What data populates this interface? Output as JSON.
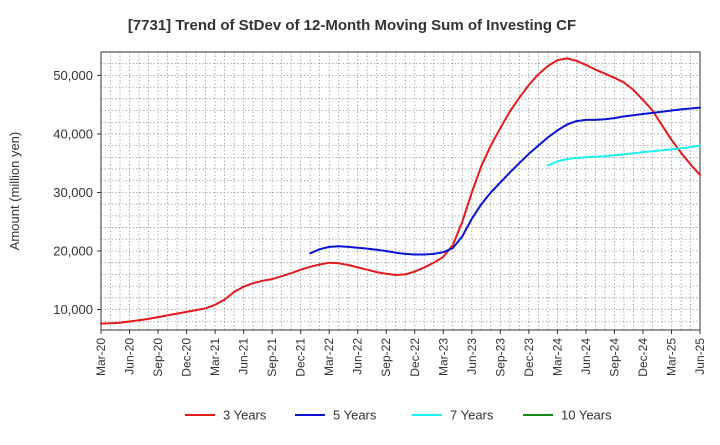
{
  "chart_data": {
    "type": "line",
    "title": "[7731]  Trend of StDev of 12-Month Moving Sum of Investing CF",
    "xlabel": "",
    "ylabel": "Amount (million yen)",
    "x_tick_labels": [
      "Mar-20",
      "Jun-20",
      "Sep-20",
      "Dec-20",
      "Mar-21",
      "Jun-21",
      "Sep-21",
      "Dec-21",
      "Mar-22",
      "Jun-22",
      "Sep-22",
      "Dec-22",
      "Mar-23",
      "Jun-23",
      "Sep-23",
      "Dec-23",
      "Mar-24",
      "Jun-24",
      "Sep-24",
      "Dec-24",
      "Mar-25",
      "Jun-25"
    ],
    "y_ticks": [
      10000,
      20000,
      30000,
      40000,
      50000
    ],
    "y_tick_labels": [
      "10,000",
      "20,000",
      "30,000",
      "40,000",
      "50,000"
    ],
    "ylim": [
      6500,
      54000
    ],
    "grid": true,
    "legend_position": "bottom",
    "series": [
      {
        "name": "3 Years",
        "color": "#e41a1c",
        "points": [
          [
            "Mar-20",
            7600
          ],
          [
            "Apr-20",
            7650
          ],
          [
            "May-20",
            7750
          ],
          [
            "Jun-20",
            7950
          ],
          [
            "Jul-20",
            8150
          ],
          [
            "Aug-20",
            8400
          ],
          [
            "Sep-20",
            8700
          ],
          [
            "Oct-20",
            9000
          ],
          [
            "Nov-20",
            9300
          ],
          [
            "Dec-20",
            9600
          ],
          [
            "Jan-21",
            9900
          ],
          [
            "Feb-21",
            10200
          ],
          [
            "Mar-21",
            10800
          ],
          [
            "Apr-21",
            11700
          ],
          [
            "May-21",
            13000
          ],
          [
            "Jun-21",
            13900
          ],
          [
            "Jul-21",
            14500
          ],
          [
            "Aug-21",
            14900
          ],
          [
            "Sep-21",
            15200
          ],
          [
            "Oct-21",
            15700
          ],
          [
            "Nov-21",
            16200
          ],
          [
            "Dec-21",
            16800
          ],
          [
            "Jan-22",
            17300
          ],
          [
            "Feb-22",
            17700
          ],
          [
            "Mar-22",
            18000
          ],
          [
            "Apr-22",
            17900
          ],
          [
            "May-22",
            17600
          ],
          [
            "Jun-22",
            17200
          ],
          [
            "Jul-22",
            16800
          ],
          [
            "Aug-22",
            16400
          ],
          [
            "Sep-22",
            16100
          ],
          [
            "Oct-22",
            15900
          ],
          [
            "Nov-22",
            16000
          ],
          [
            "Dec-22",
            16500
          ],
          [
            "Jan-23",
            17200
          ],
          [
            "Feb-23",
            18000
          ],
          [
            "Mar-23",
            19000
          ],
          [
            "Apr-23",
            21000
          ],
          [
            "May-23",
            25000
          ],
          [
            "Jun-23",
            30000
          ],
          [
            "Jul-23",
            34500
          ],
          [
            "Aug-23",
            38000
          ],
          [
            "Sep-23",
            41000
          ],
          [
            "Oct-23",
            43800
          ],
          [
            "Nov-23",
            46200
          ],
          [
            "Dec-23",
            48400
          ],
          [
            "Jan-24",
            50200
          ],
          [
            "Feb-24",
            51600
          ],
          [
            "Mar-24",
            52600
          ],
          [
            "Apr-24",
            52900
          ],
          [
            "May-24",
            52500
          ],
          [
            "Jun-24",
            51800
          ],
          [
            "Jul-24",
            51000
          ],
          [
            "Aug-24",
            50300
          ],
          [
            "Sep-24",
            49600
          ],
          [
            "Oct-24",
            48800
          ],
          [
            "Nov-24",
            47500
          ],
          [
            "Dec-24",
            45800
          ],
          [
            "Jan-25",
            44000
          ],
          [
            "Feb-25",
            41500
          ],
          [
            "Mar-25",
            39000
          ],
          [
            "Apr-25",
            36800
          ],
          [
            "May-25",
            34800
          ],
          [
            "Jun-25",
            33000
          ]
        ]
      },
      {
        "name": "5 Years",
        "color": "#0a14d0",
        "points": [
          [
            "Jan-22",
            19600
          ],
          [
            "Feb-22",
            20300
          ],
          [
            "Mar-22",
            20700
          ],
          [
            "Apr-22",
            20800
          ],
          [
            "May-22",
            20700
          ],
          [
            "Jun-22",
            20550
          ],
          [
            "Jul-22",
            20400
          ],
          [
            "Aug-22",
            20200
          ],
          [
            "Sep-22",
            20000
          ],
          [
            "Oct-22",
            19700
          ],
          [
            "Nov-22",
            19500
          ],
          [
            "Dec-22",
            19400
          ],
          [
            "Jan-23",
            19400
          ],
          [
            "Feb-23",
            19500
          ],
          [
            "Mar-23",
            19800
          ],
          [
            "Apr-23",
            20500
          ],
          [
            "May-23",
            22500
          ],
          [
            "Jun-23",
            25500
          ],
          [
            "Jul-23",
            28000
          ],
          [
            "Aug-23",
            30000
          ],
          [
            "Sep-23",
            31700
          ],
          [
            "Oct-23",
            33400
          ],
          [
            "Nov-23",
            35000
          ],
          [
            "Dec-23",
            36600
          ],
          [
            "Jan-24",
            38000
          ],
          [
            "Feb-24",
            39400
          ],
          [
            "Mar-24",
            40600
          ],
          [
            "Apr-24",
            41600
          ],
          [
            "May-24",
            42200
          ],
          [
            "Jun-24",
            42400
          ],
          [
            "Jul-24",
            42400
          ],
          [
            "Aug-24",
            42500
          ],
          [
            "Sep-24",
            42700
          ],
          [
            "Oct-24",
            43000
          ],
          [
            "Nov-24",
            43200
          ],
          [
            "Dec-24",
            43400
          ],
          [
            "Jan-25",
            43600
          ],
          [
            "Feb-25",
            43800
          ],
          [
            "Mar-25",
            44000
          ],
          [
            "Apr-25",
            44200
          ],
          [
            "May-25",
            44350
          ],
          [
            "Jun-25",
            44500
          ]
        ]
      },
      {
        "name": "7 Years",
        "color": "#1ef0f0",
        "points": [
          [
            "Feb-24",
            34600
          ],
          [
            "Mar-24",
            35300
          ],
          [
            "Apr-24",
            35700
          ],
          [
            "May-24",
            35900
          ],
          [
            "Jun-24",
            36000
          ],
          [
            "Jul-24",
            36100
          ],
          [
            "Aug-24",
            36200
          ],
          [
            "Sep-24",
            36350
          ],
          [
            "Oct-24",
            36500
          ],
          [
            "Nov-24",
            36700
          ],
          [
            "Dec-24",
            36900
          ],
          [
            "Jan-25",
            37050
          ],
          [
            "Feb-25",
            37200
          ],
          [
            "Mar-25",
            37350
          ],
          [
            "Apr-25",
            37550
          ],
          [
            "May-25",
            37750
          ],
          [
            "Jun-25",
            38000
          ]
        ]
      },
      {
        "name": "10 Years",
        "color": "#1a8a1a",
        "points": []
      }
    ]
  }
}
